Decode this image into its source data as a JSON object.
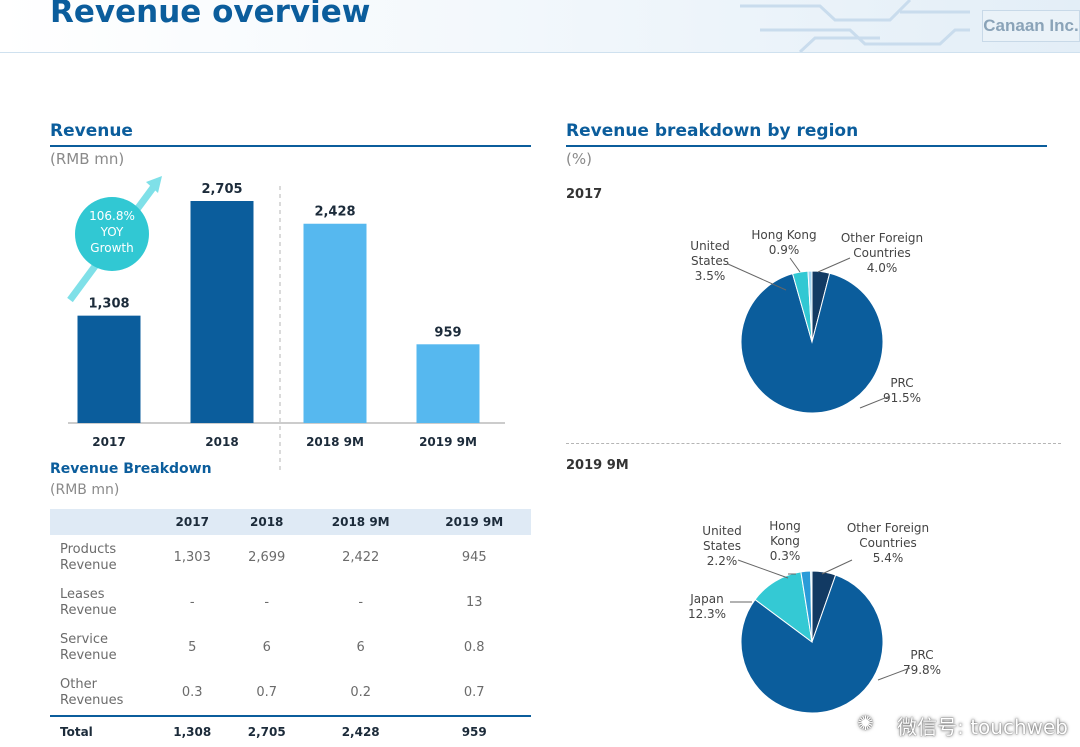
{
  "header": {
    "title": "Revenue overview",
    "logo": "Canaan Inc."
  },
  "revenue_section": {
    "title": "Revenue",
    "unit": "(RMB mn)",
    "growth_badge": [
      "106.8%",
      "YOY",
      "Growth"
    ]
  },
  "region_section": {
    "title": "Revenue breakdown by region",
    "unit": "(%)"
  },
  "breakdown_section": {
    "title": "Revenue Breakdown",
    "unit": "(RMB mn)"
  },
  "colors": {
    "dark_bar": "#0b5d9c",
    "light_bar": "#56b8ef",
    "accent_teal": "#31c8d3",
    "pie_japan": "#34c9d4",
    "pie_dark": "#123a63"
  },
  "chart_data": [
    {
      "type": "bar",
      "title": "Revenue",
      "ylabel": "(RMB mn)",
      "categories": [
        "2017",
        "2018",
        "2018 9M",
        "2019 9M"
      ],
      "values": [
        1308,
        2705,
        2428,
        959
      ],
      "value_labels": [
        "1,308",
        "2,705",
        "2,428",
        "959"
      ],
      "bar_colors": [
        "#0b5d9c",
        "#0b5d9c",
        "#56b8ef",
        "#56b8ef"
      ],
      "ylim": [
        0,
        2705
      ]
    },
    {
      "type": "pie",
      "title": "2017",
      "slices": [
        {
          "label": "PRC",
          "value": 91.5,
          "display": "91.5%",
          "color": "#0b5d9c"
        },
        {
          "label": "United States",
          "value": 3.5,
          "display": "3.5%",
          "color": "#31c8d3"
        },
        {
          "label": "Hong Kong",
          "value": 0.9,
          "display": "0.9%",
          "color": "#a3d6f3"
        },
        {
          "label": "Other Foreign Countries",
          "value": 4.0,
          "display": "4.0%",
          "color": "#123a63"
        }
      ]
    },
    {
      "type": "pie",
      "title": "2019 9M",
      "slices": [
        {
          "label": "PRC",
          "value": 79.8,
          "display": "79.8%",
          "color": "#0b5d9c"
        },
        {
          "label": "Japan",
          "value": 12.3,
          "display": "12.3%",
          "color": "#34c9d4"
        },
        {
          "label": "United States",
          "value": 2.2,
          "display": "2.2%",
          "color": "#2a9bd8"
        },
        {
          "label": "Hong Kong",
          "value": 0.3,
          "display": "0.3%",
          "color": "#a3d6f3"
        },
        {
          "label": "Other Foreign Countries",
          "value": 5.4,
          "display": "5.4%",
          "color": "#123a63"
        }
      ]
    },
    {
      "type": "table",
      "title": "Revenue Breakdown",
      "columns": [
        "",
        "2017",
        "2018",
        "2018 9M",
        "2019 9M"
      ],
      "rows": [
        {
          "label": [
            "Products",
            "Revenue"
          ],
          "values": [
            "1,303",
            "2,699",
            "2,422",
            "945"
          ]
        },
        {
          "label": [
            "Leases",
            "Revenue"
          ],
          "values": [
            "-",
            "-",
            "-",
            "13"
          ]
        },
        {
          "label": [
            "Service",
            "Revenue"
          ],
          "values": [
            "5",
            "6",
            "6",
            "0.8"
          ]
        },
        {
          "label": [
            "Other",
            "Revenues"
          ],
          "values": [
            "0.3",
            "0.7",
            "0.2",
            "0.7"
          ]
        }
      ],
      "total": {
        "label": "Total",
        "values": [
          "1,308",
          "2,705",
          "2,428",
          "959"
        ]
      }
    }
  ],
  "watermark": "微信号: touchweb"
}
